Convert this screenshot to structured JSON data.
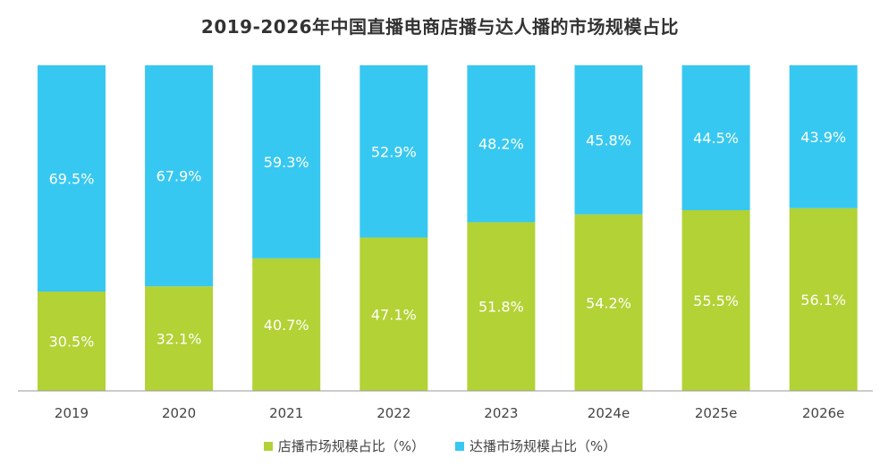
{
  "chart_data": {
    "type": "bar",
    "stacked": true,
    "percent_stacked": true,
    "title": "2019-2026年中国直播电商店播与达人播的市场规模占比",
    "categories": [
      "2019",
      "2020",
      "2021",
      "2022",
      "2023",
      "2024e",
      "2025e",
      "2026e"
    ],
    "series": [
      {
        "name": "店播市场规模占比（%）",
        "color": "#b2d235",
        "values": [
          30.5,
          32.1,
          40.7,
          47.1,
          51.8,
          54.2,
          55.5,
          56.1
        ],
        "labels": [
          "30.5%",
          "32.1%",
          "40.7%",
          "47.1%",
          "51.8%",
          "54.2%",
          "55.5%",
          "56.1%"
        ]
      },
      {
        "name": "达播市场规模占比（%）",
        "color": "#37c8f1",
        "values": [
          69.5,
          67.9,
          59.3,
          52.9,
          48.2,
          45.8,
          44.5,
          43.9
        ],
        "labels": [
          "69.5%",
          "67.9%",
          "59.3%",
          "52.9%",
          "48.2%",
          "45.8%",
          "44.5%",
          "43.9%"
        ]
      }
    ],
    "ylim": [
      0,
      100
    ],
    "grid": false,
    "legend_position": "bottom"
  }
}
